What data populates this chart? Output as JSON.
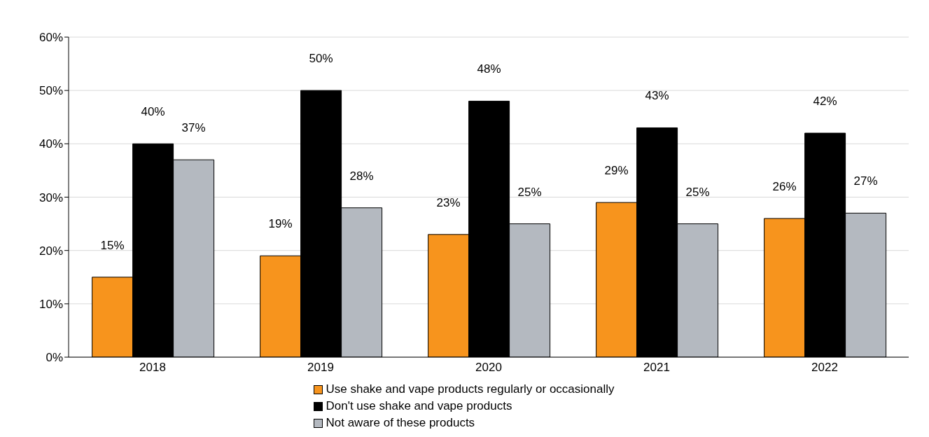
{
  "chart_data": {
    "type": "bar",
    "categories": [
      "2018",
      "2019",
      "2020",
      "2021",
      "2022"
    ],
    "series": [
      {
        "name": "Use shake and vape products regularly or occasionally",
        "color": "#f7941d",
        "values": [
          15,
          19,
          23,
          29,
          26
        ],
        "value_labels": [
          "15%",
          "19%",
          "23%",
          "29%",
          "26%"
        ]
      },
      {
        "name": "Don't use shake and vape products",
        "color": "#000000",
        "values": [
          40,
          50,
          48,
          43,
          42
        ],
        "value_labels": [
          "40%",
          "50%",
          "48%",
          "43%",
          "42%"
        ]
      },
      {
        "name": "Not aware of these products",
        "color": "#b4b9c0",
        "values": [
          37,
          28,
          25,
          25,
          27
        ],
        "value_labels": [
          "37%",
          "28%",
          "25%",
          "25%",
          "27%"
        ]
      }
    ],
    "ylim": [
      0,
      60
    ],
    "yticks": [
      {
        "value": 0,
        "label": "0%"
      },
      {
        "value": 10,
        "label": "10%"
      },
      {
        "value": 20,
        "label": "20%"
      },
      {
        "value": 30,
        "label": "30%"
      },
      {
        "value": 40,
        "label": "40%"
      },
      {
        "value": 50,
        "label": "50%"
      },
      {
        "value": 60,
        "label": "60%"
      }
    ],
    "grid": "y",
    "legend": "bottom"
  }
}
